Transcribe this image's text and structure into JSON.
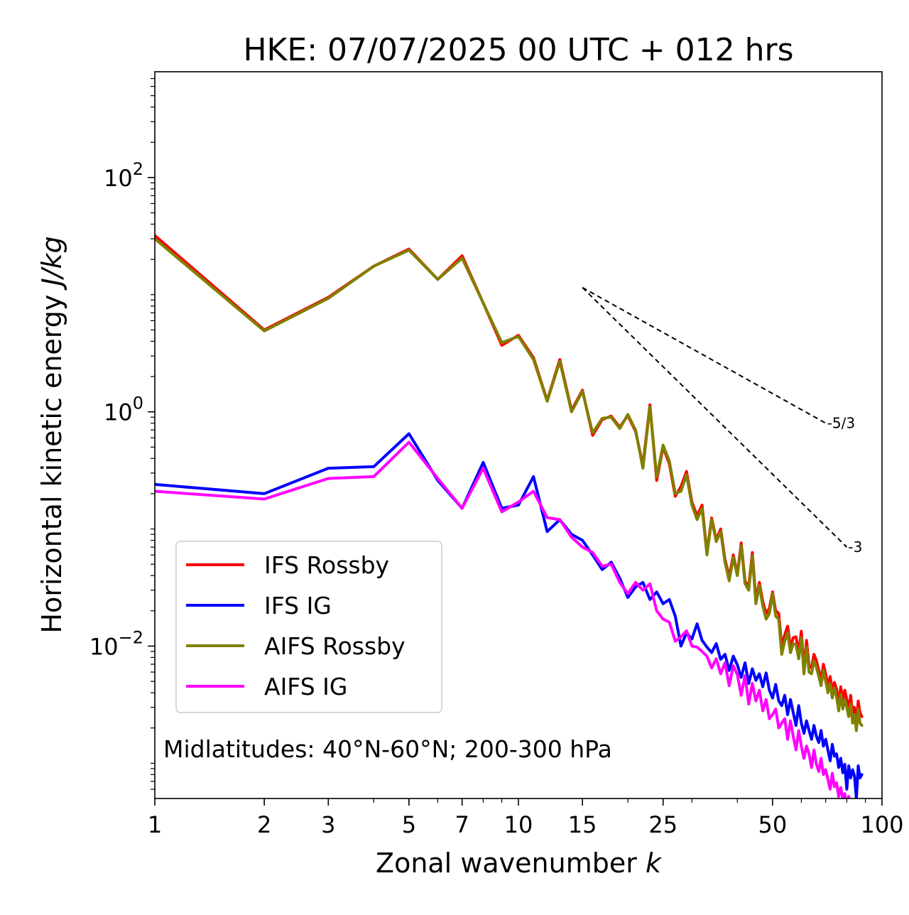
{
  "chart_data": {
    "type": "line",
    "title": "HKE: 07/07/2025 00 UTC + 012 hrs",
    "xlabel_text": "Zonal wavenumber ",
    "xlabel_symbol": "k",
    "ylabel_text": "Horizontal kinetic energy ",
    "ylabel_unit": "J/kg",
    "xscale": "log",
    "yscale": "log",
    "xlim": [
      1,
      100
    ],
    "ylim": [
      0.0005,
      800
    ],
    "grid": false,
    "legend_placement": "lower-left",
    "x_ticks": [
      {
        "value": 1,
        "label": "1"
      },
      {
        "value": 2,
        "label": "2"
      },
      {
        "value": 3,
        "label": "3"
      },
      {
        "value": 5,
        "label": "5"
      },
      {
        "value": 7,
        "label": "7"
      },
      {
        "value": 10,
        "label": "10"
      },
      {
        "value": 15,
        "label": "15"
      },
      {
        "value": 25,
        "label": "25"
      },
      {
        "value": 50,
        "label": "50"
      },
      {
        "value": 100,
        "label": "100"
      }
    ],
    "y_ticks": [
      {
        "value": 100,
        "base": "10",
        "exp": "2"
      },
      {
        "value": 1,
        "base": "10",
        "exp": "0"
      },
      {
        "value": 0.01,
        "base": "10",
        "exp": "−2"
      }
    ],
    "annotation": "Midlatitudes: 40°N-60°N; 200-300 hPa",
    "reference_slopes": [
      {
        "label": "-5/3",
        "x": [
          15,
          70
        ],
        "y": [
          11.5,
          0.8
        ]
      },
      {
        "label": "-3",
        "x": [
          15,
          80
        ],
        "y": [
          11.5,
          0.07
        ]
      }
    ],
    "series": [
      {
        "name": "IFS Rossby",
        "color": "#ff0000",
        "y": [
          32,
          5.0,
          9.5,
          17.5,
          24.5,
          13.5,
          21.5,
          8.5,
          3.7,
          4.5,
          2.9,
          1.25,
          2.8,
          1.03,
          1.53,
          0.63,
          0.86,
          0.92,
          0.74,
          0.93,
          0.68,
          0.35,
          1.15,
          0.26,
          0.5,
          0.36,
          0.19,
          0.23,
          0.31,
          0.17,
          0.13,
          0.16,
          0.063,
          0.124,
          0.081,
          0.1,
          0.055,
          0.039,
          0.06,
          0.041,
          0.076,
          0.036,
          0.032,
          0.063,
          0.025,
          0.035,
          0.024,
          0.019,
          0.021,
          0.029,
          0.02,
          0.019,
          0.01,
          0.0125,
          0.0148,
          0.0098,
          0.0118,
          0.012,
          0.0088,
          0.0134,
          0.0063,
          0.0112,
          0.0068,
          0.0065,
          0.0085,
          0.0075,
          0.0062,
          0.0052,
          0.007,
          0.0058,
          0.0046,
          0.0055,
          0.0041,
          0.0049,
          0.0043,
          0.0032,
          0.0045,
          0.0034,
          0.0042,
          0.0035,
          0.0029,
          0.0038,
          0.0026,
          0.003,
          0.0022,
          0.0034,
          0.0027,
          0.0025
        ]
      },
      {
        "name": "IFS IG",
        "color": "#0000ff",
        "y": [
          0.24,
          0.2,
          0.33,
          0.34,
          0.65,
          0.26,
          0.15,
          0.37,
          0.15,
          0.16,
          0.28,
          0.095,
          0.12,
          0.09,
          0.08,
          0.06,
          0.045,
          0.052,
          0.038,
          0.026,
          0.032,
          0.035,
          0.025,
          0.029,
          0.023,
          0.025,
          0.018,
          0.01,
          0.013,
          0.0115,
          0.0155,
          0.0112,
          0.0098,
          0.0088,
          0.0105,
          0.0077,
          0.0085,
          0.0062,
          0.0082,
          0.0069,
          0.0054,
          0.0072,
          0.0048,
          0.0064,
          0.0051,
          0.0058,
          0.0045,
          0.0059,
          0.0042,
          0.0036,
          0.0047,
          0.0034,
          0.0031,
          0.0038,
          0.0026,
          0.0035,
          0.0027,
          0.0021,
          0.0031,
          0.0022,
          0.0018,
          0.0023,
          0.0019,
          0.0016,
          0.0021,
          0.0017,
          0.0015,
          0.0019,
          0.0014,
          0.0016,
          0.0013,
          0.00105,
          0.00145,
          0.00115,
          0.0012,
          0.00092,
          0.0011,
          0.00083,
          0.00098,
          0.0006,
          0.00095,
          0.00075,
          0.00088,
          0.00078,
          0.0005,
          0.00095,
          0.00075,
          0.0008
        ]
      },
      {
        "name": "AIFS Rossby",
        "color": "#808000",
        "y": [
          30,
          4.9,
          9.3,
          17.5,
          24.0,
          13.5,
          20.5,
          8.5,
          3.9,
          4.4,
          2.8,
          1.23,
          2.7,
          1.0,
          1.5,
          0.66,
          0.88,
          0.9,
          0.72,
          0.95,
          0.7,
          0.33,
          1.1,
          0.28,
          0.52,
          0.38,
          0.2,
          0.21,
          0.29,
          0.16,
          0.12,
          0.15,
          0.06,
          0.12,
          0.078,
          0.095,
          0.052,
          0.036,
          0.057,
          0.04,
          0.072,
          0.034,
          0.03,
          0.059,
          0.023,
          0.033,
          0.022,
          0.017,
          0.019,
          0.028,
          0.018,
          0.017,
          0.0085,
          0.011,
          0.013,
          0.0088,
          0.0105,
          0.0103,
          0.0078,
          0.0118,
          0.0058,
          0.0098,
          0.006,
          0.0058,
          0.0075,
          0.0066,
          0.0055,
          0.0046,
          0.0062,
          0.005,
          0.004,
          0.0048,
          0.0036,
          0.0044,
          0.0037,
          0.0028,
          0.0039,
          0.0029,
          0.0035,
          0.003,
          0.0025,
          0.0032,
          0.0022,
          0.0026,
          0.0019,
          0.0029,
          0.0022,
          0.0021
        ]
      },
      {
        "name": "AIFS IG",
        "color": "#ff00ff",
        "y": [
          0.21,
          0.18,
          0.27,
          0.28,
          0.55,
          0.27,
          0.15,
          0.33,
          0.14,
          0.17,
          0.21,
          0.125,
          0.12,
          0.085,
          0.07,
          0.063,
          0.048,
          0.05,
          0.035,
          0.028,
          0.035,
          0.03,
          0.034,
          0.02,
          0.017,
          0.016,
          0.011,
          0.012,
          0.0135,
          0.01,
          0.0098,
          0.009,
          0.0082,
          0.0065,
          0.0078,
          0.0058,
          0.0072,
          0.0046,
          0.0068,
          0.0057,
          0.0038,
          0.0056,
          0.0032,
          0.0048,
          0.0034,
          0.0042,
          0.0028,
          0.0035,
          0.0024,
          0.0026,
          0.0029,
          0.002,
          0.0022,
          0.0024,
          0.0016,
          0.0023,
          0.0017,
          0.0013,
          0.0019,
          0.0014,
          0.0011,
          0.0014,
          0.0012,
          0.00092,
          0.0013,
          0.00098,
          0.00085,
          0.0011,
          0.0008,
          0.00088,
          0.00073,
          0.0006,
          0.00082,
          0.00063,
          0.00068,
          0.00052,
          0.00062,
          0.0005,
          0.00055,
          0.00042,
          0.00052,
          0.00045,
          0.00048,
          0.00042,
          0.00035,
          0.00048,
          0.0004,
          0.00042
        ]
      }
    ]
  }
}
